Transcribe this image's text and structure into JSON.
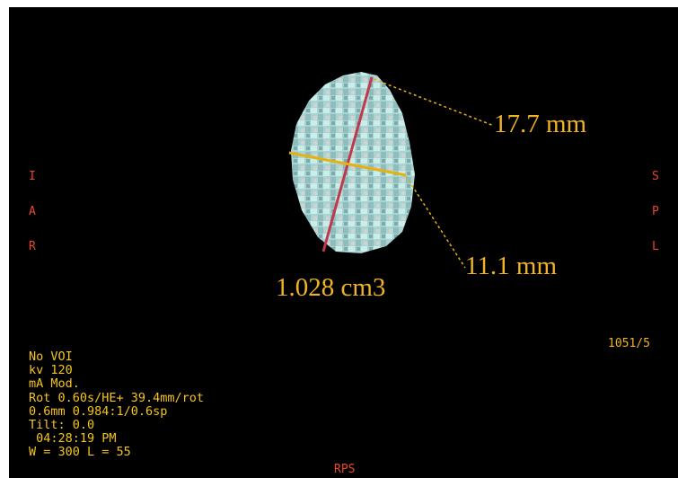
{
  "orientation_left": [
    "I",
    "A",
    "R"
  ],
  "orientation_right": [
    "S",
    "P",
    "L"
  ],
  "orientation_bottom": "RPS",
  "image_number": "1051/5",
  "info_lines": [
    "No VOI",
    "kv 120",
    "mA Mod.",
    "Rot 0.60s/HE+ 39.4mm/rot",
    "0.6mm 0.984:1/0.6sp",
    "Tilt: 0.0",
    " 04:28:19 PM",
    "W = 300 L = 55"
  ],
  "measurements": {
    "length_1": "17.7 mm",
    "length_2": "11.1 mm",
    "volume": "1.028 cm3"
  }
}
